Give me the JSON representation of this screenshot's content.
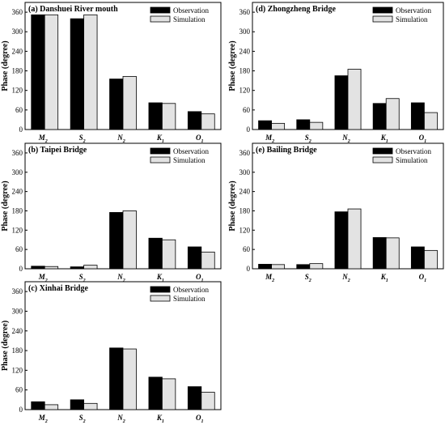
{
  "chart_data": [
    {
      "type": "bar",
      "title": "(a) Danshuei River mouth",
      "ylabel": "Phase (degree)",
      "ylim": [
        0,
        390
      ],
      "yticks": [
        0,
        60,
        120,
        180,
        240,
        300,
        360
      ],
      "categories": [
        [
          "M",
          "2"
        ],
        [
          "S",
          "2"
        ],
        [
          "N",
          "2"
        ],
        [
          "K",
          "1"
        ],
        [
          "O",
          "1"
        ]
      ],
      "series": [
        {
          "name": "Observation",
          "color": "#000000",
          "values": [
            352,
            340,
            155,
            82,
            55
          ]
        },
        {
          "name": "Simulation",
          "color": "#e3e3e3",
          "values": [
            352,
            352,
            163,
            80,
            48
          ]
        }
      ]
    },
    {
      "type": "bar",
      "title": "(d) Zhongzheng Bridge",
      "ylabel": "Phase (degree)",
      "ylim": [
        0,
        390
      ],
      "yticks": [
        0,
        60,
        120,
        180,
        240,
        300,
        360
      ],
      "categories": [
        [
          "M",
          "2"
        ],
        [
          "S",
          "2"
        ],
        [
          "N",
          "2"
        ],
        [
          "K",
          "1"
        ],
        [
          "O",
          "1"
        ]
      ],
      "series": [
        {
          "name": "Observation",
          "color": "#000000",
          "values": [
            27,
            30,
            165,
            80,
            82
          ]
        },
        {
          "name": "Simulation",
          "color": "#e3e3e3",
          "values": [
            19,
            22,
            185,
            95,
            52
          ]
        }
      ]
    },
    {
      "type": "bar",
      "title": "(b) Taipei Bridge",
      "ylabel": "Phase (degree)",
      "ylim": [
        0,
        390
      ],
      "yticks": [
        0,
        60,
        120,
        180,
        240,
        300,
        360
      ],
      "categories": [
        [
          "M",
          "2"
        ],
        [
          "S",
          "2"
        ],
        [
          "N",
          "2"
        ],
        [
          "K",
          "1"
        ],
        [
          "O",
          "1"
        ]
      ],
      "series": [
        {
          "name": "Observation",
          "color": "#000000",
          "values": [
            8,
            6,
            175,
            95,
            68
          ]
        },
        {
          "name": "Simulation",
          "color": "#e3e3e3",
          "values": [
            7,
            11,
            180,
            90,
            52
          ]
        }
      ]
    },
    {
      "type": "bar",
      "title": "(e) Bailing Bridge",
      "ylabel": "Phase (degree)",
      "ylim": [
        0,
        390
      ],
      "yticks": [
        0,
        60,
        120,
        180,
        240,
        300,
        360
      ],
      "categories": [
        [
          "M",
          "2"
        ],
        [
          "S",
          "2"
        ],
        [
          "N",
          "2"
        ],
        [
          "K",
          "1"
        ],
        [
          "O",
          "1"
        ]
      ],
      "series": [
        {
          "name": "Observation",
          "color": "#000000",
          "values": [
            14,
            13,
            177,
            97,
            68
          ]
        },
        {
          "name": "Simulation",
          "color": "#e3e3e3",
          "values": [
            13,
            16,
            186,
            96,
            57
          ]
        }
      ]
    },
    {
      "type": "bar",
      "title": "(c) Xinhai Bridge",
      "ylabel": "Phase (degree)",
      "ylim": [
        0,
        390
      ],
      "yticks": [
        0,
        60,
        120,
        180,
        240,
        300,
        360
      ],
      "categories": [
        [
          "M",
          "2"
        ],
        [
          "S",
          "2"
        ],
        [
          "N",
          "2"
        ],
        [
          "K",
          "1"
        ],
        [
          "O",
          "1"
        ]
      ],
      "series": [
        {
          "name": "Observation",
          "color": "#000000",
          "values": [
            24,
            30,
            188,
            99,
            70
          ]
        },
        {
          "name": "Simulation",
          "color": "#e3e3e3",
          "values": [
            15,
            19,
            185,
            94,
            53
          ]
        }
      ]
    }
  ]
}
